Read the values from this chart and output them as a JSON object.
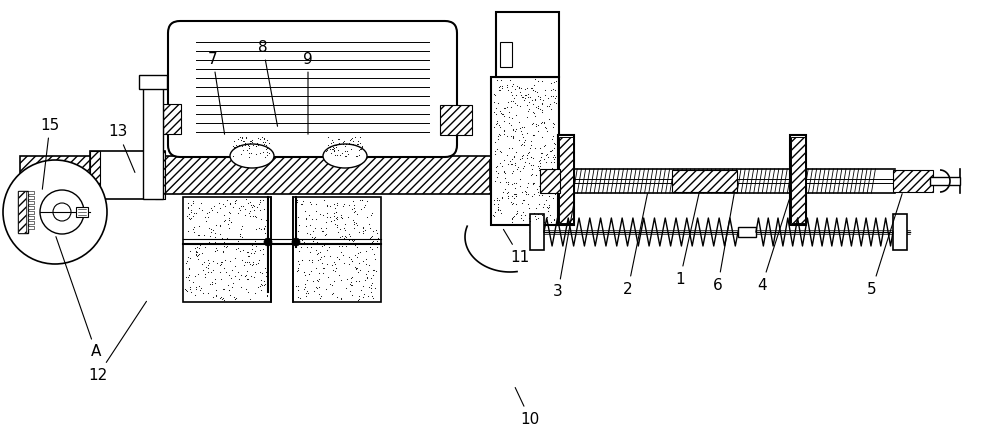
{
  "bg_color": "#ffffff",
  "line_color": "#000000",
  "label_color": "#000000",
  "figsize": [
    10.0,
    4.47
  ],
  "dpi": 100,
  "labels": [
    [
      "1",
      680,
      168,
      700,
      258
    ],
    [
      "2",
      628,
      158,
      648,
      256
    ],
    [
      "3",
      558,
      155,
      575,
      250
    ],
    [
      "4",
      762,
      162,
      790,
      250
    ],
    [
      "5",
      872,
      158,
      903,
      256
    ],
    [
      "6",
      718,
      162,
      735,
      258
    ],
    [
      "7",
      213,
      388,
      225,
      310
    ],
    [
      "8",
      263,
      400,
      278,
      318
    ],
    [
      "9",
      308,
      388,
      308,
      310
    ],
    [
      "10",
      530,
      28,
      514,
      62
    ],
    [
      "11",
      520,
      190,
      502,
      220
    ],
    [
      "12",
      98,
      72,
      148,
      148
    ],
    [
      "13",
      118,
      315,
      136,
      272
    ],
    [
      "15",
      50,
      322,
      42,
      255
    ],
    [
      "A",
      96,
      95,
      55,
      213
    ]
  ]
}
